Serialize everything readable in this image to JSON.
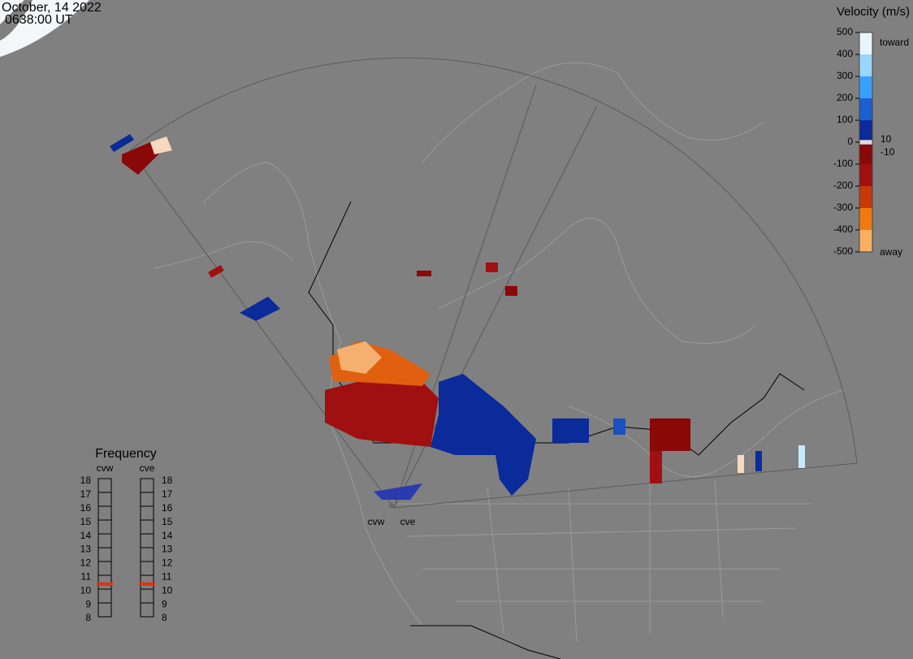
{
  "header": {
    "date": "October, 14 2022",
    "time": "0638:00 UT"
  },
  "velocity_scale": {
    "title": "Velocity (m/s)",
    "ticks": [
      500,
      400,
      300,
      200,
      100,
      0,
      -100,
      -200,
      -300,
      -400,
      -500
    ],
    "inner_ticks": [
      10,
      -10
    ],
    "top_label": "toward",
    "bottom_label": "away"
  },
  "frequency": {
    "title": "Frequency",
    "radars": [
      {
        "name": "cvw",
        "frequency": 10.5
      },
      {
        "name": "cve",
        "frequency": 10.5
      }
    ],
    "ticks": [
      18,
      17,
      16,
      15,
      14,
      13,
      12,
      11,
      10,
      9,
      8
    ]
  },
  "radar_sites": [
    "cvw",
    "cve"
  ]
}
